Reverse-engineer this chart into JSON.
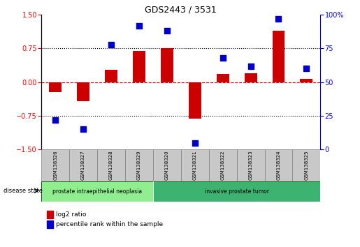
{
  "title": "GDS2443 / 3531",
  "samples": [
    "GSM138326",
    "GSM138327",
    "GSM138328",
    "GSM138329",
    "GSM138320",
    "GSM138321",
    "GSM138322",
    "GSM138323",
    "GSM138324",
    "GSM138325"
  ],
  "log2_ratio": [
    -0.22,
    -0.42,
    0.28,
    0.7,
    0.76,
    -0.82,
    0.18,
    0.2,
    1.15,
    0.08
  ],
  "percentile_rank": [
    22,
    15,
    78,
    92,
    88,
    5,
    68,
    62,
    97,
    60
  ],
  "disease_groups": [
    {
      "label": "prostate intraepithelial neoplasia",
      "count": 4,
      "color": "#90EE90"
    },
    {
      "label": "invasive prostate tumor",
      "count": 6,
      "color": "#3CB371"
    }
  ],
  "bar_color": "#CC0000",
  "dot_color": "#0000CC",
  "ylim_left": [
    -1.5,
    1.5
  ],
  "yticks_left": [
    -1.5,
    -0.75,
    0,
    0.75,
    1.5
  ],
  "yticks_right": [
    0,
    25,
    50,
    75,
    100
  ],
  "hlines_dotted": [
    -0.75,
    0.75
  ],
  "hline_dashed": 0,
  "bar_width": 0.45,
  "dot_size": 35,
  "legend_bar_label": "log2 ratio",
  "legend_dot_label": "percentile rank within the sample",
  "disease_state_label": "disease state",
  "sample_box_color": "#C8C8C8",
  "group1_color": "#90EE90",
  "group2_color": "#3CB371"
}
